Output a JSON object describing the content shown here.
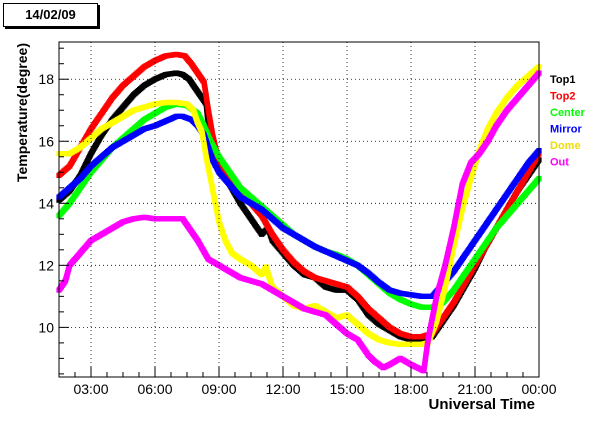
{
  "header": {
    "date_label": "14/02/09"
  },
  "chart_data": {
    "type": "scatter",
    "title": "",
    "xlabel": "Universal Time",
    "ylabel": "Temperature(degree)",
    "xlim": [
      1.5,
      24.0
    ],
    "ylim": [
      8.4,
      19.2
    ],
    "x_ticks": [
      3,
      6,
      9,
      12,
      15,
      18,
      21,
      24
    ],
    "x_tick_labels": [
      "03:00",
      "06:00",
      "09:00",
      "12:00",
      "15:00",
      "18:00",
      "21:00",
      "00:00"
    ],
    "y_ticks": [
      10,
      12,
      14,
      16,
      18
    ],
    "y_tick_labels": [
      "10",
      "12",
      "14",
      "16",
      "18"
    ],
    "grid": true,
    "legend_position": "right",
    "series": [
      {
        "name": "Top1",
        "color": "#000000",
        "points": [
          [
            1.5,
            14.1
          ],
          [
            2,
            14.4
          ],
          [
            2.5,
            14.9
          ],
          [
            3,
            15.6
          ],
          [
            3.5,
            16.2
          ],
          [
            4,
            16.7
          ],
          [
            4.5,
            17.1
          ],
          [
            5,
            17.5
          ],
          [
            5.5,
            17.8
          ],
          [
            6,
            18.0
          ],
          [
            6.5,
            18.15
          ],
          [
            7,
            18.2
          ],
          [
            7.3,
            18.15
          ],
          [
            7.6,
            18.0
          ],
          [
            7.9,
            17.7
          ],
          [
            8.2,
            17.4
          ],
          [
            8.4,
            17.2
          ],
          [
            8.5,
            16.5
          ],
          [
            8.7,
            15.6
          ],
          [
            9,
            15.2
          ],
          [
            9.5,
            14.6
          ],
          [
            10,
            14.0
          ],
          [
            10.5,
            13.5
          ],
          [
            11,
            13.0
          ],
          [
            11.3,
            13.2
          ],
          [
            11.5,
            12.8
          ],
          [
            12,
            12.4
          ],
          [
            12.5,
            12.0
          ],
          [
            13,
            11.7
          ],
          [
            13.5,
            11.6
          ],
          [
            14,
            11.3
          ],
          [
            14.5,
            11.2
          ],
          [
            15,
            11.2
          ],
          [
            15.5,
            10.9
          ],
          [
            16,
            10.4
          ],
          [
            16.5,
            10.1
          ],
          [
            17,
            9.9
          ],
          [
            17.5,
            9.7
          ],
          [
            18,
            9.6
          ],
          [
            18.5,
            9.6
          ],
          [
            19,
            9.7
          ],
          [
            19.5,
            10.2
          ],
          [
            20,
            10.7
          ],
          [
            20.5,
            11.3
          ],
          [
            21,
            11.9
          ],
          [
            21.5,
            12.6
          ],
          [
            22,
            13.2
          ],
          [
            22.5,
            13.8
          ],
          [
            23,
            14.4
          ],
          [
            23.5,
            14.9
          ],
          [
            24,
            15.4
          ]
        ]
      },
      {
        "name": "Top2",
        "color": "#ff0000",
        "points": [
          [
            1.5,
            14.9
          ],
          [
            2,
            15.2
          ],
          [
            2.5,
            15.8
          ],
          [
            3,
            16.4
          ],
          [
            3.5,
            16.9
          ],
          [
            4,
            17.4
          ],
          [
            4.5,
            17.8
          ],
          [
            5,
            18.1
          ],
          [
            5.5,
            18.4
          ],
          [
            6,
            18.6
          ],
          [
            6.5,
            18.75
          ],
          [
            7,
            18.8
          ],
          [
            7.4,
            18.75
          ],
          [
            7.7,
            18.5
          ],
          [
            8,
            18.2
          ],
          [
            8.3,
            17.9
          ],
          [
            8.5,
            17.0
          ],
          [
            8.7,
            16.2
          ],
          [
            9,
            15.3
          ],
          [
            9.5,
            14.8
          ],
          [
            10,
            14.4
          ],
          [
            10.5,
            14.0
          ],
          [
            11,
            13.6
          ],
          [
            11.5,
            13.0
          ],
          [
            12,
            12.5
          ],
          [
            12.5,
            12.1
          ],
          [
            13,
            11.8
          ],
          [
            13.5,
            11.6
          ],
          [
            14,
            11.5
          ],
          [
            14.5,
            11.4
          ],
          [
            15,
            11.3
          ],
          [
            15.5,
            11.0
          ],
          [
            16,
            10.6
          ],
          [
            16.5,
            10.3
          ],
          [
            17,
            10.0
          ],
          [
            17.5,
            9.8
          ],
          [
            18,
            9.7
          ],
          [
            18.5,
            9.7
          ],
          [
            19,
            9.8
          ],
          [
            19.5,
            10.3
          ],
          [
            20,
            10.8
          ],
          [
            20.5,
            11.4
          ],
          [
            21,
            12.0
          ],
          [
            21.5,
            12.6
          ],
          [
            22,
            13.2
          ],
          [
            22.5,
            13.8
          ],
          [
            23,
            14.4
          ],
          [
            23.5,
            15.0
          ],
          [
            24,
            15.6
          ]
        ]
      },
      {
        "name": "Center",
        "color": "#00ff00",
        "points": [
          [
            1.5,
            13.6
          ],
          [
            2,
            14.0
          ],
          [
            2.5,
            14.5
          ],
          [
            3,
            15.0
          ],
          [
            3.5,
            15.4
          ],
          [
            4,
            15.8
          ],
          [
            4.5,
            16.1
          ],
          [
            5,
            16.4
          ],
          [
            5.5,
            16.7
          ],
          [
            6,
            16.9
          ],
          [
            6.5,
            17.1
          ],
          [
            7,
            17.2
          ],
          [
            7.5,
            17.15
          ],
          [
            8,
            16.9
          ],
          [
            8.3,
            16.5
          ],
          [
            8.6,
            16.0
          ],
          [
            9,
            15.5
          ],
          [
            9.5,
            15.0
          ],
          [
            10,
            14.5
          ],
          [
            10.5,
            14.2
          ],
          [
            11,
            13.9
          ],
          [
            11.5,
            13.6
          ],
          [
            12,
            13.3
          ],
          [
            12.5,
            13.0
          ],
          [
            13,
            12.8
          ],
          [
            13.5,
            12.6
          ],
          [
            14,
            12.45
          ],
          [
            14.5,
            12.35
          ],
          [
            15,
            12.2
          ],
          [
            15.5,
            12.0
          ],
          [
            16,
            11.7
          ],
          [
            16.5,
            11.4
          ],
          [
            17,
            11.1
          ],
          [
            17.5,
            10.9
          ],
          [
            18,
            10.75
          ],
          [
            18.5,
            10.65
          ],
          [
            19,
            10.65
          ],
          [
            19.5,
            10.8
          ],
          [
            20,
            11.2
          ],
          [
            20.5,
            11.7
          ],
          [
            21,
            12.2
          ],
          [
            21.5,
            12.7
          ],
          [
            22,
            13.2
          ],
          [
            22.5,
            13.6
          ],
          [
            23,
            14.0
          ],
          [
            23.5,
            14.4
          ],
          [
            24,
            14.8
          ]
        ]
      },
      {
        "name": "Mirror",
        "color": "#0000ff",
        "points": [
          [
            1.5,
            14.2
          ],
          [
            2,
            14.5
          ],
          [
            2.5,
            14.8
          ],
          [
            3,
            15.2
          ],
          [
            3.5,
            15.5
          ],
          [
            4,
            15.8
          ],
          [
            4.5,
            16.0
          ],
          [
            5,
            16.2
          ],
          [
            5.5,
            16.4
          ],
          [
            6,
            16.5
          ],
          [
            6.5,
            16.65
          ],
          [
            7,
            16.8
          ],
          [
            7.3,
            16.8
          ],
          [
            7.7,
            16.7
          ],
          [
            8,
            16.5
          ],
          [
            8.3,
            16.2
          ],
          [
            8.5,
            15.8
          ],
          [
            8.7,
            15.4
          ],
          [
            9,
            15.0
          ],
          [
            9.5,
            14.6
          ],
          [
            10,
            14.2
          ],
          [
            10.5,
            14.0
          ],
          [
            11,
            13.8
          ],
          [
            11.5,
            13.5
          ],
          [
            12,
            13.2
          ],
          [
            12.5,
            13.0
          ],
          [
            13,
            12.8
          ],
          [
            13.5,
            12.6
          ],
          [
            14,
            12.45
          ],
          [
            14.5,
            12.3
          ],
          [
            15,
            12.15
          ],
          [
            15.5,
            12.0
          ],
          [
            16,
            11.75
          ],
          [
            16.5,
            11.45
          ],
          [
            17,
            11.2
          ],
          [
            17.5,
            11.1
          ],
          [
            18,
            11.05
          ],
          [
            18.5,
            11.0
          ],
          [
            19,
            11.0
          ],
          [
            19.5,
            11.4
          ],
          [
            20,
            11.8
          ],
          [
            20.5,
            12.3
          ],
          [
            21,
            12.8
          ],
          [
            21.5,
            13.3
          ],
          [
            22,
            13.8
          ],
          [
            22.5,
            14.3
          ],
          [
            23,
            14.8
          ],
          [
            23.5,
            15.3
          ],
          [
            24,
            15.7
          ]
        ]
      },
      {
        "name": "Dome",
        "color": "#ffff00",
        "points": [
          [
            1.5,
            15.6
          ],
          [
            2,
            15.6
          ],
          [
            2.5,
            15.8
          ],
          [
            3,
            16.1
          ],
          [
            3.5,
            16.4
          ],
          [
            4,
            16.6
          ],
          [
            4.5,
            16.8
          ],
          [
            5,
            17.0
          ],
          [
            5.5,
            17.1
          ],
          [
            6,
            17.2
          ],
          [
            6.5,
            17.25
          ],
          [
            7,
            17.25
          ],
          [
            7.5,
            17.2
          ],
          [
            7.8,
            17.0
          ],
          [
            8,
            16.6
          ],
          [
            8.2,
            16.3
          ],
          [
            8.4,
            15.5
          ],
          [
            8.6,
            14.8
          ],
          [
            9,
            13.4
          ],
          [
            9.3,
            12.8
          ],
          [
            9.6,
            12.4
          ],
          [
            10,
            12.2
          ],
          [
            10.5,
            12.0
          ],
          [
            11,
            11.7
          ],
          [
            11.2,
            11.95
          ],
          [
            11.5,
            11.3
          ],
          [
            12,
            11.0
          ],
          [
            12.5,
            10.7
          ],
          [
            13,
            10.6
          ],
          [
            13.5,
            10.7
          ],
          [
            14,
            10.5
          ],
          [
            14.5,
            10.3
          ],
          [
            15,
            10.4
          ],
          [
            15.5,
            10.1
          ],
          [
            16,
            9.8
          ],
          [
            16.5,
            9.6
          ],
          [
            17,
            9.5
          ],
          [
            17.5,
            9.45
          ],
          [
            18,
            9.45
          ],
          [
            18.5,
            9.45
          ],
          [
            18.8,
            9.5
          ],
          [
            19.2,
            10.2
          ],
          [
            19.6,
            11.3
          ],
          [
            20,
            12.6
          ],
          [
            20.4,
            13.8
          ],
          [
            20.8,
            14.8
          ],
          [
            21.2,
            15.7
          ],
          [
            21.6,
            16.4
          ],
          [
            22,
            16.9
          ],
          [
            22.5,
            17.4
          ],
          [
            23,
            17.8
          ],
          [
            23.5,
            18.1
          ],
          [
            24,
            18.4
          ]
        ]
      },
      {
        "name": "Out",
        "color": "#ff00ff",
        "points": [
          [
            1.5,
            11.2
          ],
          [
            1.8,
            11.5
          ],
          [
            2,
            12.0
          ],
          [
            2.5,
            12.4
          ],
          [
            3,
            12.8
          ],
          [
            3.5,
            13.0
          ],
          [
            4,
            13.2
          ],
          [
            4.5,
            13.4
          ],
          [
            5,
            13.5
          ],
          [
            5.5,
            13.55
          ],
          [
            6,
            13.5
          ],
          [
            6.5,
            13.5
          ],
          [
            7,
            13.5
          ],
          [
            7.3,
            13.5
          ],
          [
            7.6,
            13.2
          ],
          [
            8,
            12.8
          ],
          [
            8.5,
            12.2
          ],
          [
            9,
            12.0
          ],
          [
            9.5,
            11.8
          ],
          [
            10,
            11.6
          ],
          [
            10.5,
            11.5
          ],
          [
            11,
            11.4
          ],
          [
            11.5,
            11.2
          ],
          [
            12,
            11.0
          ],
          [
            12.5,
            10.8
          ],
          [
            13,
            10.6
          ],
          [
            13.5,
            10.5
          ],
          [
            14,
            10.4
          ],
          [
            14.5,
            10.1
          ],
          [
            15,
            9.8
          ],
          [
            15.5,
            9.6
          ],
          [
            16,
            9.1
          ],
          [
            16.3,
            8.9
          ],
          [
            16.7,
            8.7
          ],
          [
            17,
            8.8
          ],
          [
            17.5,
            9.0
          ],
          [
            18,
            8.8
          ],
          [
            18.3,
            8.7
          ],
          [
            18.6,
            8.6
          ],
          [
            18.8,
            9.6
          ],
          [
            19.2,
            11.0
          ],
          [
            19.6,
            12.0
          ],
          [
            20,
            13.2
          ],
          [
            20.4,
            14.6
          ],
          [
            20.8,
            15.3
          ],
          [
            21.2,
            15.6
          ],
          [
            21.6,
            16.0
          ],
          [
            22,
            16.5
          ],
          [
            22.5,
            17.0
          ],
          [
            23,
            17.4
          ],
          [
            23.5,
            17.8
          ],
          [
            24,
            18.2
          ]
        ]
      }
    ]
  }
}
